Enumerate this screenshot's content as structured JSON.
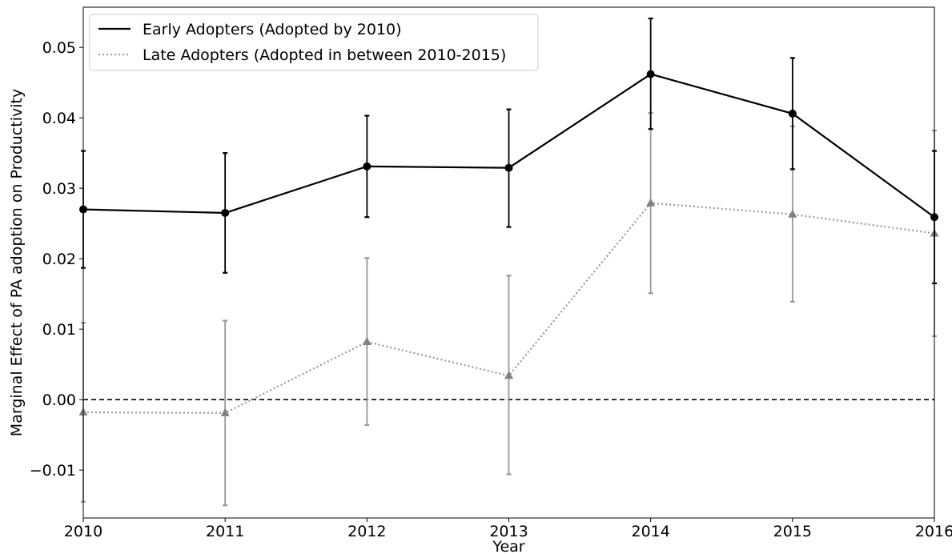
{
  "chart_data": {
    "type": "line",
    "title": "",
    "xlabel": "Year",
    "ylabel": "Marginal Effect of PA adoption on Productivity",
    "x": [
      2010,
      2011,
      2012,
      2013,
      2014,
      2015,
      2016
    ],
    "xticks": [
      "2010",
      "2011",
      "2012",
      "2013",
      "2014",
      "2015",
      "2016"
    ],
    "yticks": [
      "−0.01",
      "0.00",
      "0.01",
      "0.02",
      "0.03",
      "0.04",
      "0.05"
    ],
    "ytick_values": [
      -0.01,
      0.0,
      0.01,
      0.02,
      0.03,
      0.04,
      0.05
    ],
    "xlim": [
      2010,
      2016
    ],
    "ylim": [
      -0.0168,
      0.0557
    ],
    "grid": false,
    "legend_position": "top-left",
    "reference_line": {
      "y": 0.0,
      "style": "dashed",
      "color": "#000000"
    },
    "series": [
      {
        "name": "Early Adopters (Adopted by 2010)",
        "color": "#000000",
        "line_style": "solid",
        "marker": "circle",
        "values": [
          0.027,
          0.0265,
          0.0331,
          0.0329,
          0.0462,
          0.0406,
          0.0259
        ],
        "err_low": [
          0.0187,
          0.018,
          0.0259,
          0.0245,
          0.0384,
          0.0327,
          0.0165
        ],
        "err_high": [
          0.0353,
          0.035,
          0.0403,
          0.0412,
          0.0541,
          0.0485,
          0.0353
        ]
      },
      {
        "name": "Late Adopters (Adopted in between 2010-2015)",
        "color": "#888888",
        "line_style": "dotted",
        "marker": "triangle",
        "values": [
          -0.0018,
          -0.0019,
          0.0082,
          0.0034,
          0.0279,
          0.0263,
          0.0236
        ],
        "err_low": [
          -0.0145,
          -0.015,
          -0.0036,
          -0.0106,
          0.0151,
          0.0139,
          0.009
        ],
        "err_high": [
          0.0109,
          0.0112,
          0.0201,
          0.0176,
          0.0407,
          0.0388,
          0.0382
        ]
      }
    ]
  }
}
